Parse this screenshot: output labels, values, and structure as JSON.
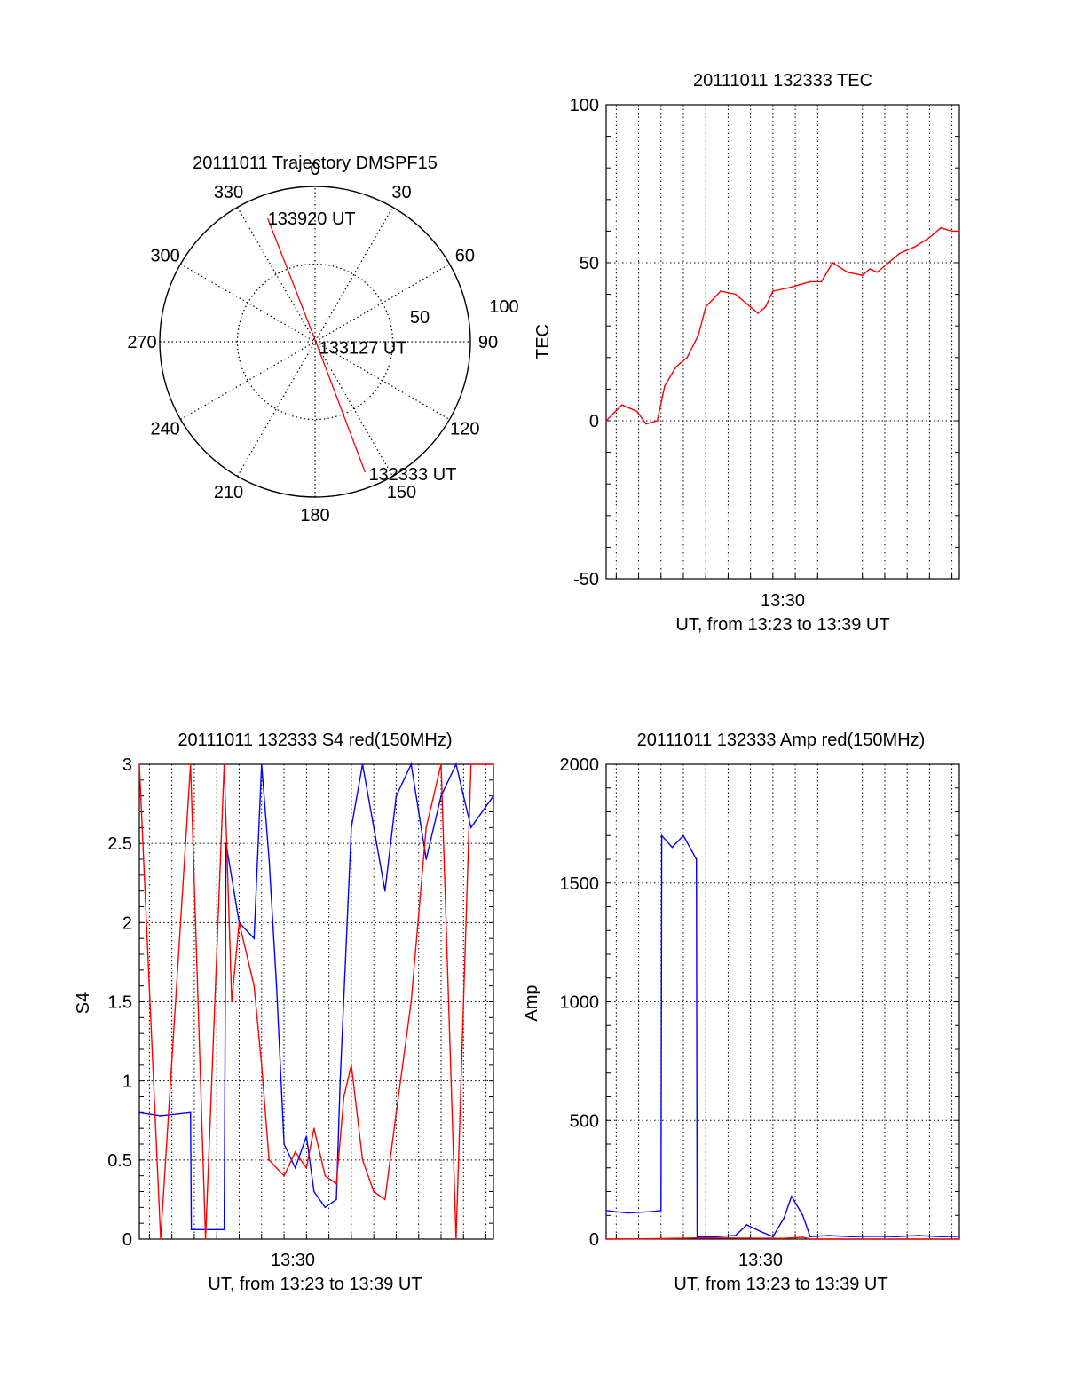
{
  "colors": {
    "red": "#ff0000",
    "blue": "#0000ff",
    "axis": "#000000",
    "grid": "#000000"
  },
  "chart_data": [
    {
      "id": "trajectory",
      "type": "polar",
      "title": "20111011 Trajectory DMSPF15",
      "angle_labels": [
        "0",
        "30",
        "60",
        "90",
        "120",
        "150",
        "180",
        "210",
        "240",
        "270",
        "300",
        "330"
      ],
      "radial_ticks": [
        "50",
        "100"
      ],
      "rmax": 100,
      "track": [
        {
          "label": "133920 UT",
          "azimuth": 339,
          "radius": 85
        },
        {
          "label": "133127 UT",
          "azimuth": 150,
          "radius": 3
        },
        {
          "label": "132333 UT",
          "azimuth": 159,
          "radius": 90
        }
      ]
    },
    {
      "id": "tec",
      "type": "line",
      "title": "20111011 132333 TEC",
      "ylabel": "TEC",
      "xlabel": "UT, from 13:23 to 13:39 UT",
      "x_tick_label": "13:30",
      "ylim": [
        -50,
        100
      ],
      "y_ticks": [
        "-50",
        "0",
        "50",
        "100"
      ],
      "xlim": [
        "13:23:33",
        "13:39:20"
      ],
      "series": [
        {
          "color": "red",
          "x": [
            "13:23:33",
            "13:24:15",
            "13:24:55",
            "13:25:20",
            "13:25:50",
            "13:26:10",
            "13:26:40",
            "13:27:10",
            "13:27:40",
            "13:28:00",
            "13:28:40",
            "13:29:20",
            "13:30:00",
            "13:30:20",
            "13:30:40",
            "13:31:00",
            "13:31:40",
            "13:32:10",
            "13:32:40",
            "13:33:10",
            "13:33:40",
            "13:34:20",
            "13:35:00",
            "13:35:20",
            "13:35:40",
            "13:36:10",
            "13:36:40",
            "13:37:20",
            "13:38:00",
            "13:38:30",
            "13:39:00",
            "13:39:20"
          ],
          "y": [
            0,
            5,
            3,
            -1,
            0,
            11,
            17,
            20,
            27,
            36,
            41,
            40,
            36,
            34,
            36,
            41,
            42,
            43,
            44,
            44,
            50,
            47,
            46,
            48,
            47,
            50,
            53,
            55,
            58,
            61,
            60,
            60
          ]
        }
      ]
    },
    {
      "id": "s4",
      "type": "line",
      "title": "20111011 132333 S4 red(150MHz)",
      "ylabel": "S4",
      "xlabel": "UT, from 13:23 to 13:39 UT",
      "x_tick_label": "13:30",
      "ylim": [
        0,
        3
      ],
      "y_ticks": [
        "0",
        "0.5",
        "1",
        "1.5",
        "2",
        "2.5",
        "3"
      ],
      "xlim": [
        "13:23:33",
        "13:39:20"
      ],
      "series": [
        {
          "color": "blue",
          "x": [
            "13:23:33",
            "13:24:30",
            "13:25:50",
            "13:25:52",
            "13:27:20",
            "13:27:25",
            "13:28:00",
            "13:28:40",
            "13:29:00",
            "13:29:20",
            "13:29:40",
            "13:30:00",
            "13:30:30",
            "13:31:00",
            "13:31:20",
            "13:31:50",
            "13:32:20",
            "13:32:30",
            "13:33:00",
            "13:33:30",
            "13:34:00",
            "13:34:30",
            "13:35:00",
            "13:35:40",
            "13:36:20",
            "13:37:00",
            "13:37:40",
            "13:38:20",
            "13:39:20"
          ],
          "y": [
            0.8,
            0.78,
            0.8,
            0.06,
            0.06,
            2.5,
            2.0,
            1.9,
            3.0,
            2.4,
            1.6,
            0.6,
            0.45,
            0.65,
            0.3,
            0.2,
            0.25,
            1.0,
            2.6,
            3.0,
            2.6,
            2.2,
            2.8,
            3.0,
            2.4,
            2.8,
            3.0,
            2.6,
            2.8
          ]
        },
        {
          "color": "red",
          "x": [
            "13:23:33",
            "13:24:30",
            "13:25:50",
            "13:26:30",
            "13:27:20",
            "13:27:40",
            "13:28:00",
            "13:28:40",
            "13:29:00",
            "13:29:20",
            "13:29:40",
            "13:30:00",
            "13:30:30",
            "13:31:00",
            "13:31:20",
            "13:31:50",
            "13:32:20",
            "13:32:40",
            "13:33:00",
            "13:33:30",
            "13:34:00",
            "13:34:30",
            "13:35:00",
            "13:35:40",
            "13:36:20",
            "13:37:00",
            "13:37:40",
            "13:38:20",
            "13:39:20"
          ],
          "y": [
            3.0,
            0.0,
            3.0,
            0.0,
            3.0,
            1.5,
            2.0,
            1.6,
            1.1,
            0.5,
            0.45,
            0.4,
            0.55,
            0.45,
            0.7,
            0.4,
            0.35,
            0.9,
            1.1,
            0.5,
            0.3,
            0.25,
            0.8,
            1.5,
            2.6,
            3.0,
            0.0,
            3.0,
            3.0
          ]
        }
      ]
    },
    {
      "id": "amp",
      "type": "line",
      "title": "20111011 132333 Amp red(150MHz)",
      "ylabel": "Amp",
      "xlabel": "UT, from 13:23 to 13:39 UT",
      "x_tick_label": "13:30",
      "ylim": [
        0,
        2000
      ],
      "y_ticks": [
        "0",
        "500",
        "1000",
        "1500",
        "2000"
      ],
      "xlim": [
        "13:23:33",
        "13:39:20"
      ],
      "series": [
        {
          "color": "blue",
          "x": [
            "13:23:33",
            "13:24:30",
            "13:25:30",
            "13:26:00",
            "13:26:02",
            "13:26:30",
            "13:27:00",
            "13:27:35",
            "13:27:37",
            "13:28:30",
            "13:29:20",
            "13:29:50",
            "13:30:30",
            "13:31:00",
            "13:31:30",
            "13:31:50",
            "13:32:20",
            "13:32:40",
            "13:33:30",
            "13:34:30",
            "13:35:30",
            "13:36:30",
            "13:37:30",
            "13:38:30",
            "13:39:20"
          ],
          "y": [
            120,
            110,
            115,
            120,
            1700,
            1650,
            1700,
            1600,
            10,
            10,
            15,
            60,
            30,
            10,
            90,
            180,
            100,
            10,
            15,
            10,
            12,
            10,
            15,
            10,
            12
          ]
        },
        {
          "color": "red",
          "x": [
            "13:23:33",
            "13:26:00",
            "13:27:35",
            "13:31:30",
            "13:32:20",
            "13:32:40",
            "13:39:20"
          ],
          "y": [
            0,
            2,
            5,
            3,
            8,
            0,
            0
          ]
        }
      ]
    }
  ]
}
